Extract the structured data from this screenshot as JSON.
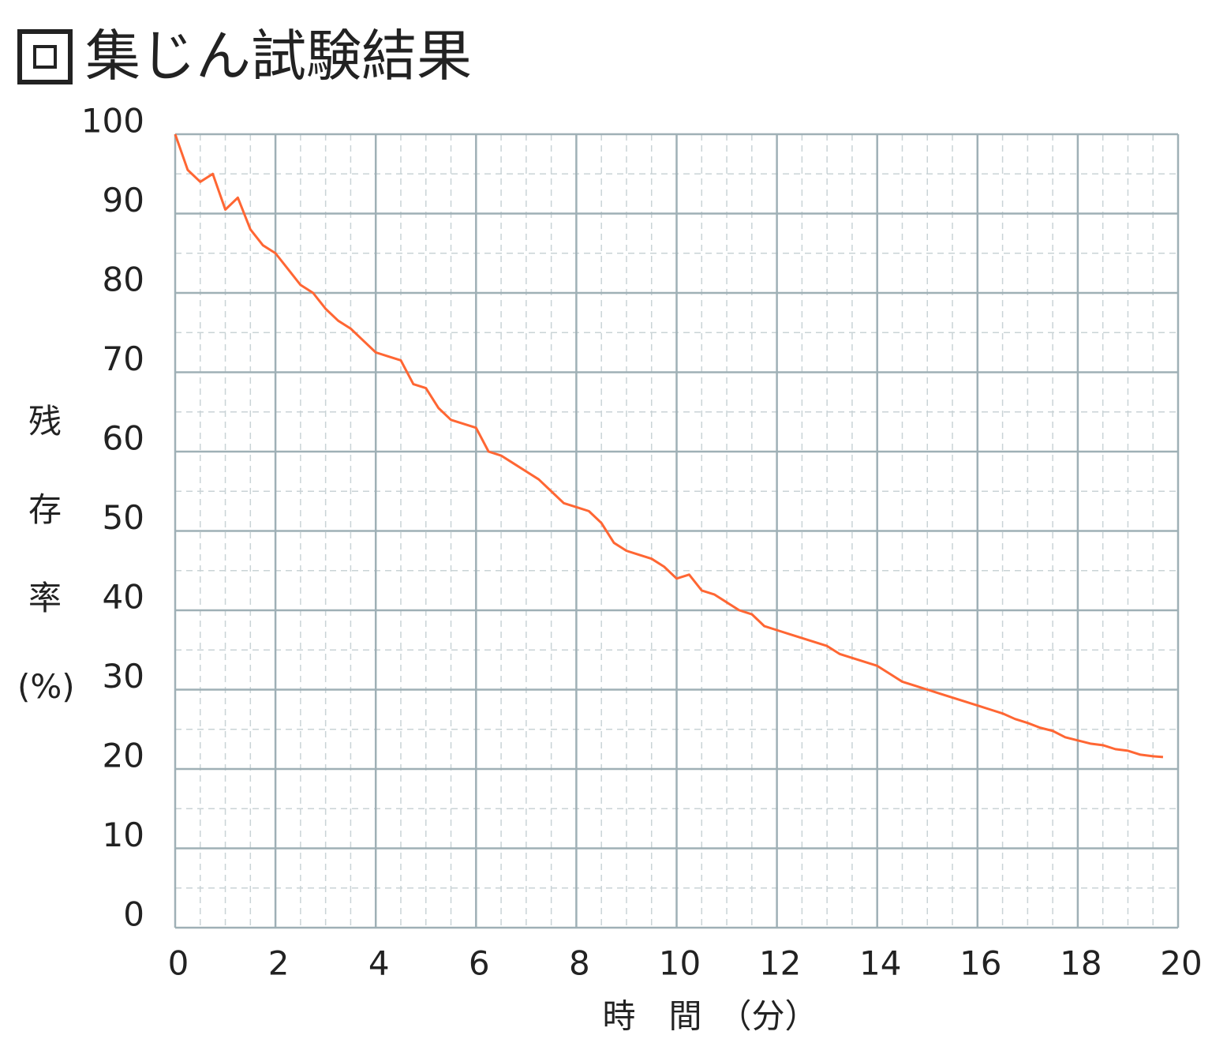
{
  "chart_data": {
    "type": "line",
    "title": "集じん試験結果",
    "x_label": "時　間　（分）",
    "y_label": "残存率(%)",
    "x": [
      0,
      0.25,
      0.5,
      0.75,
      1,
      1.25,
      1.5,
      1.75,
      2,
      2.25,
      2.5,
      2.75,
      3,
      3.25,
      3.5,
      3.75,
      4,
      4.25,
      4.5,
      4.75,
      5,
      5.25,
      5.5,
      5.75,
      6,
      6.25,
      6.5,
      6.75,
      7,
      7.25,
      7.5,
      7.75,
      8,
      8.25,
      8.5,
      8.75,
      9,
      9.25,
      9.5,
      9.75,
      10,
      10.25,
      10.5,
      10.75,
      11,
      11.25,
      11.5,
      11.75,
      12,
      12.25,
      12.5,
      12.75,
      13,
      13.25,
      13.5,
      13.75,
      14,
      14.25,
      14.5,
      14.75,
      15,
      15.25,
      15.5,
      15.75,
      16,
      16.25,
      16.5,
      16.75,
      17,
      17.25,
      17.5,
      17.75,
      18,
      18.25,
      18.5,
      18.75,
      19,
      19.25,
      19.5,
      19.7
    ],
    "series": [
      {
        "name": "残存率",
        "color": "#ff6633",
        "values": [
          100,
          95.5,
          94,
          95,
          90.5,
          92,
          88,
          86,
          85,
          83,
          81,
          80,
          78,
          76.5,
          75.5,
          74,
          72.5,
          72,
          71.5,
          68.5,
          68,
          65.5,
          64,
          63.5,
          63,
          60,
          59.5,
          58.5,
          57.5,
          56.5,
          55,
          53.5,
          53,
          52.5,
          51,
          48.5,
          47.5,
          47,
          46.5,
          45.5,
          44,
          44.5,
          42.5,
          42,
          41,
          40,
          39.5,
          38,
          37.5,
          37,
          36.5,
          36,
          35.5,
          34.5,
          34,
          33.5,
          33,
          32,
          31,
          30.5,
          30,
          29.5,
          29,
          28.5,
          28,
          27.5,
          27,
          26.3,
          25.8,
          25.2,
          24.8,
          24,
          23.6,
          23.2,
          23,
          22.5,
          22.3,
          21.8,
          21.6,
          21.5
        ]
      }
    ],
    "xlim": [
      0,
      20
    ],
    "ylim": [
      0,
      100
    ],
    "xticks": [
      0,
      2,
      4,
      6,
      8,
      10,
      12,
      14,
      16,
      18,
      20
    ],
    "yticks": [
      0,
      10,
      20,
      30,
      40,
      50,
      60,
      70,
      80,
      90,
      100
    ],
    "grid": true
  }
}
